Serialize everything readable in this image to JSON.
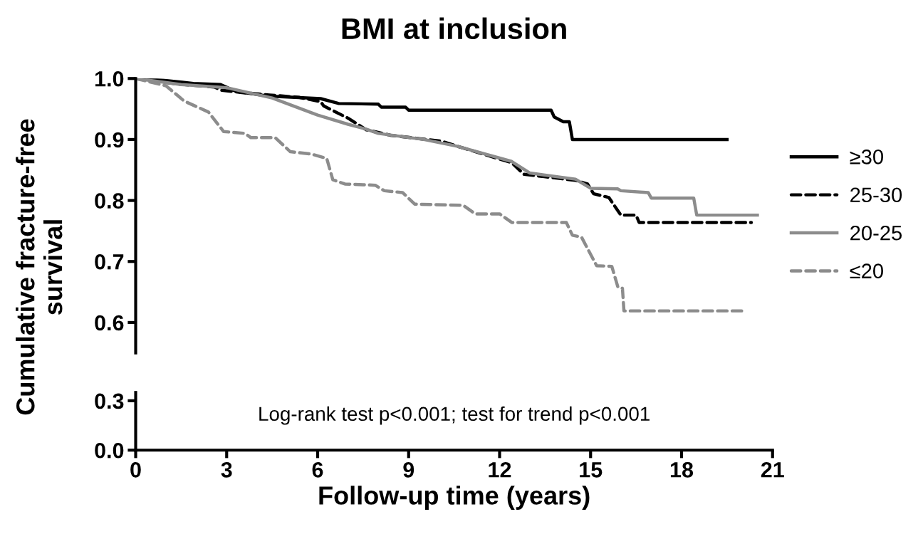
{
  "chart_data": [
    {
      "type": "line",
      "title": "BMI at inclusion",
      "ylabel": "Cumulative fracture-free\nsurvival",
      "xlim": [
        0,
        21
      ],
      "ylim": [
        0.55,
        1.0
      ],
      "yticks": [
        0.6,
        0.7,
        0.8,
        0.9,
        {
          "value": 1,
          "label": "1.0"
        }
      ],
      "tick_labels": "y",
      "legend": "right",
      "grid": false,
      "series": [
        {
          "name": "≥30",
          "color": "#000000",
          "line_style": "solid",
          "x": [
            0,
            0.9,
            1.9,
            2.8,
            3.3,
            4.4,
            6.1,
            6.7,
            8.0,
            8.1,
            8.9,
            9.0,
            13.7,
            13.8,
            14.1,
            14.3,
            14.4,
            19.5
          ],
          "values": [
            1.0,
            0.997,
            0.992,
            0.99,
            0.979,
            0.971,
            0.967,
            0.959,
            0.958,
            0.953,
            0.953,
            0.948,
            0.948,
            0.937,
            0.929,
            0.929,
            0.9,
            0.9
          ]
        },
        {
          "name": "25-30",
          "color": "#000000",
          "line_style": "dashed",
          "x": [
            0,
            1.4,
            2.6,
            2.8,
            3.5,
            4.4,
            5.4,
            6.1,
            6.2,
            7.0,
            7.6,
            8.4,
            10.1,
            10.6,
            12.4,
            12.8,
            14.5,
            14.9,
            15.1,
            15.6,
            16.0,
            16.5,
            16.6,
            20.3
          ],
          "values": [
            1.0,
            0.991,
            0.986,
            0.981,
            0.977,
            0.973,
            0.969,
            0.962,
            0.955,
            0.935,
            0.916,
            0.907,
            0.897,
            0.889,
            0.862,
            0.843,
            0.833,
            0.827,
            0.811,
            0.805,
            0.776,
            0.776,
            0.764,
            0.764
          ]
        },
        {
          "name": "20-25",
          "color": "#8c8c8c",
          "line_style": "solid",
          "x": [
            0,
            1.5,
            3.0,
            4.5,
            6.0,
            7.0,
            7.6,
            8.0,
            9.5,
            10.6,
            12.4,
            13.0,
            14.5,
            15.0,
            15.9,
            16.0,
            16.9,
            17.0,
            18.4,
            18.5,
            20.5
          ],
          "values": [
            1.0,
            0.99,
            0.985,
            0.968,
            0.94,
            0.925,
            0.917,
            0.91,
            0.9,
            0.889,
            0.864,
            0.845,
            0.835,
            0.82,
            0.819,
            0.816,
            0.813,
            0.804,
            0.804,
            0.776,
            0.776
          ]
        },
        {
          "name": "≤20",
          "color": "#8c8c8c",
          "line_style": "dashed",
          "x": [
            0,
            1.0,
            1.6,
            2.4,
            2.9,
            3.6,
            3.8,
            4.6,
            5.1,
            5.8,
            6.3,
            6.5,
            6.9,
            7.9,
            8.2,
            8.8,
            9.2,
            10.8,
            11.2,
            12.0,
            12.4,
            14.2,
            14.4,
            14.7,
            15.2,
            15.7,
            15.9,
            16.05,
            16.1,
            20.0
          ],
          "values": [
            1.0,
            0.988,
            0.963,
            0.945,
            0.913,
            0.91,
            0.903,
            0.903,
            0.88,
            0.876,
            0.869,
            0.834,
            0.827,
            0.825,
            0.816,
            0.813,
            0.794,
            0.792,
            0.778,
            0.778,
            0.764,
            0.764,
            0.743,
            0.74,
            0.693,
            0.692,
            0.658,
            0.656,
            0.619,
            0.619
          ]
        }
      ]
    },
    {
      "type": "line",
      "xlabel": "Follow-up time (years)",
      "xlim": [
        0,
        21
      ],
      "xticks": [
        0,
        3,
        6,
        9,
        12,
        15,
        18,
        21
      ],
      "ylim": [
        0,
        0.35
      ],
      "yticks": [
        {
          "value": 0,
          "label": "0.0"
        },
        0.3
      ],
      "grid": false,
      "annotations": [
        "Log-rank test p<0.001; test for trend p<0.001"
      ]
    }
  ]
}
